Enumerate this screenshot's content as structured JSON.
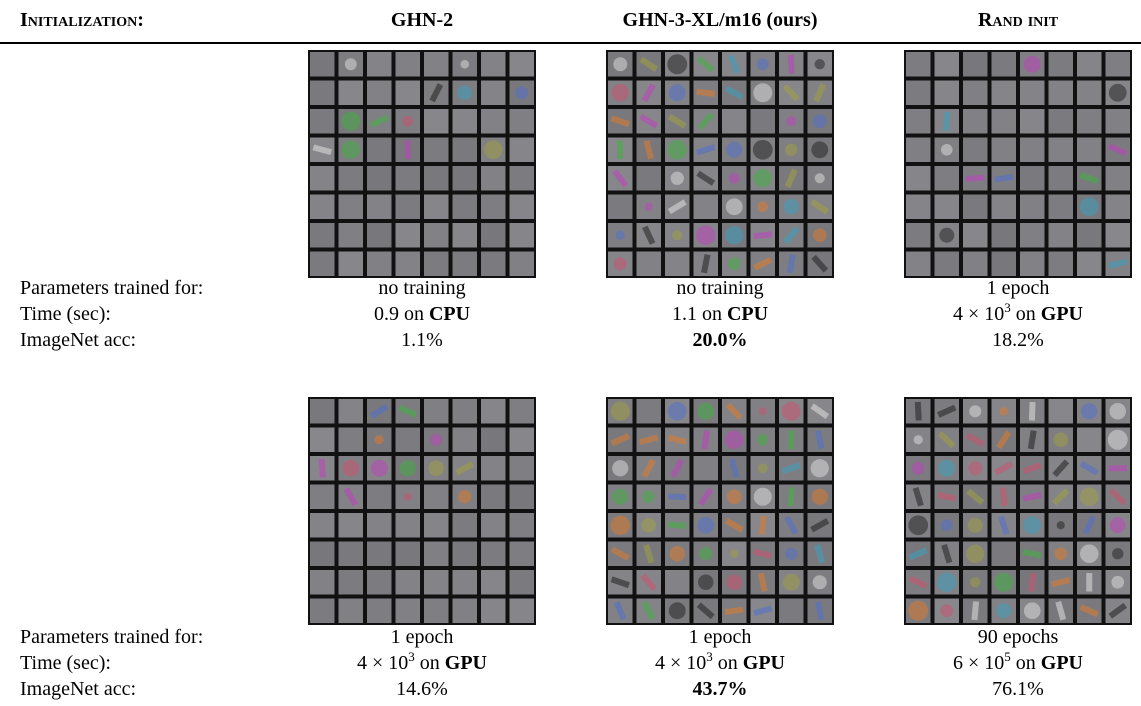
{
  "header": {
    "label": "Initialization:",
    "columns": [
      "GHN-2",
      "GHN-3-XL/m16 (ours)",
      "Rand init"
    ]
  },
  "blocks": [
    {
      "row_labels": [
        "Parameters trained for:",
        "Time (sec):",
        "ImageNet acc:"
      ],
      "cells": [
        {
          "trained": "no training",
          "time": {
            "base": "0.9",
            "on": "on",
            "device": "CPU"
          },
          "acc": "1.1%",
          "acc_bold": false
        },
        {
          "trained": "no training",
          "time": {
            "base": "1.1",
            "on": "on",
            "device": "CPU"
          },
          "acc": "20.0%",
          "acc_bold": true
        },
        {
          "trained": "1 epoch",
          "time": {
            "base": "4 × 10",
            "exp": "3",
            "on": "on",
            "device": "GPU"
          },
          "acc": "18.2%",
          "acc_bold": false
        }
      ]
    },
    {
      "row_labels": [
        "Parameters trained for:",
        "Time (sec):",
        "ImageNet acc:"
      ],
      "cells": [
        {
          "trained": "1 epoch",
          "time": {
            "base": "4 × 10",
            "exp": "3",
            "on": "on",
            "device": "GPU"
          },
          "acc": "14.6%",
          "acc_bold": false
        },
        {
          "trained": "1 epoch",
          "time": {
            "base": "4 × 10",
            "exp": "3",
            "on": "on",
            "device": "GPU"
          },
          "acc": "43.7%",
          "acc_bold": true
        },
        {
          "trained": "90 epochs",
          "time": {
            "base": "6 × 10",
            "exp": "5",
            "on": "on",
            "device": "GPU"
          },
          "acc": "76.1%",
          "acc_bold": false
        }
      ]
    }
  ]
}
